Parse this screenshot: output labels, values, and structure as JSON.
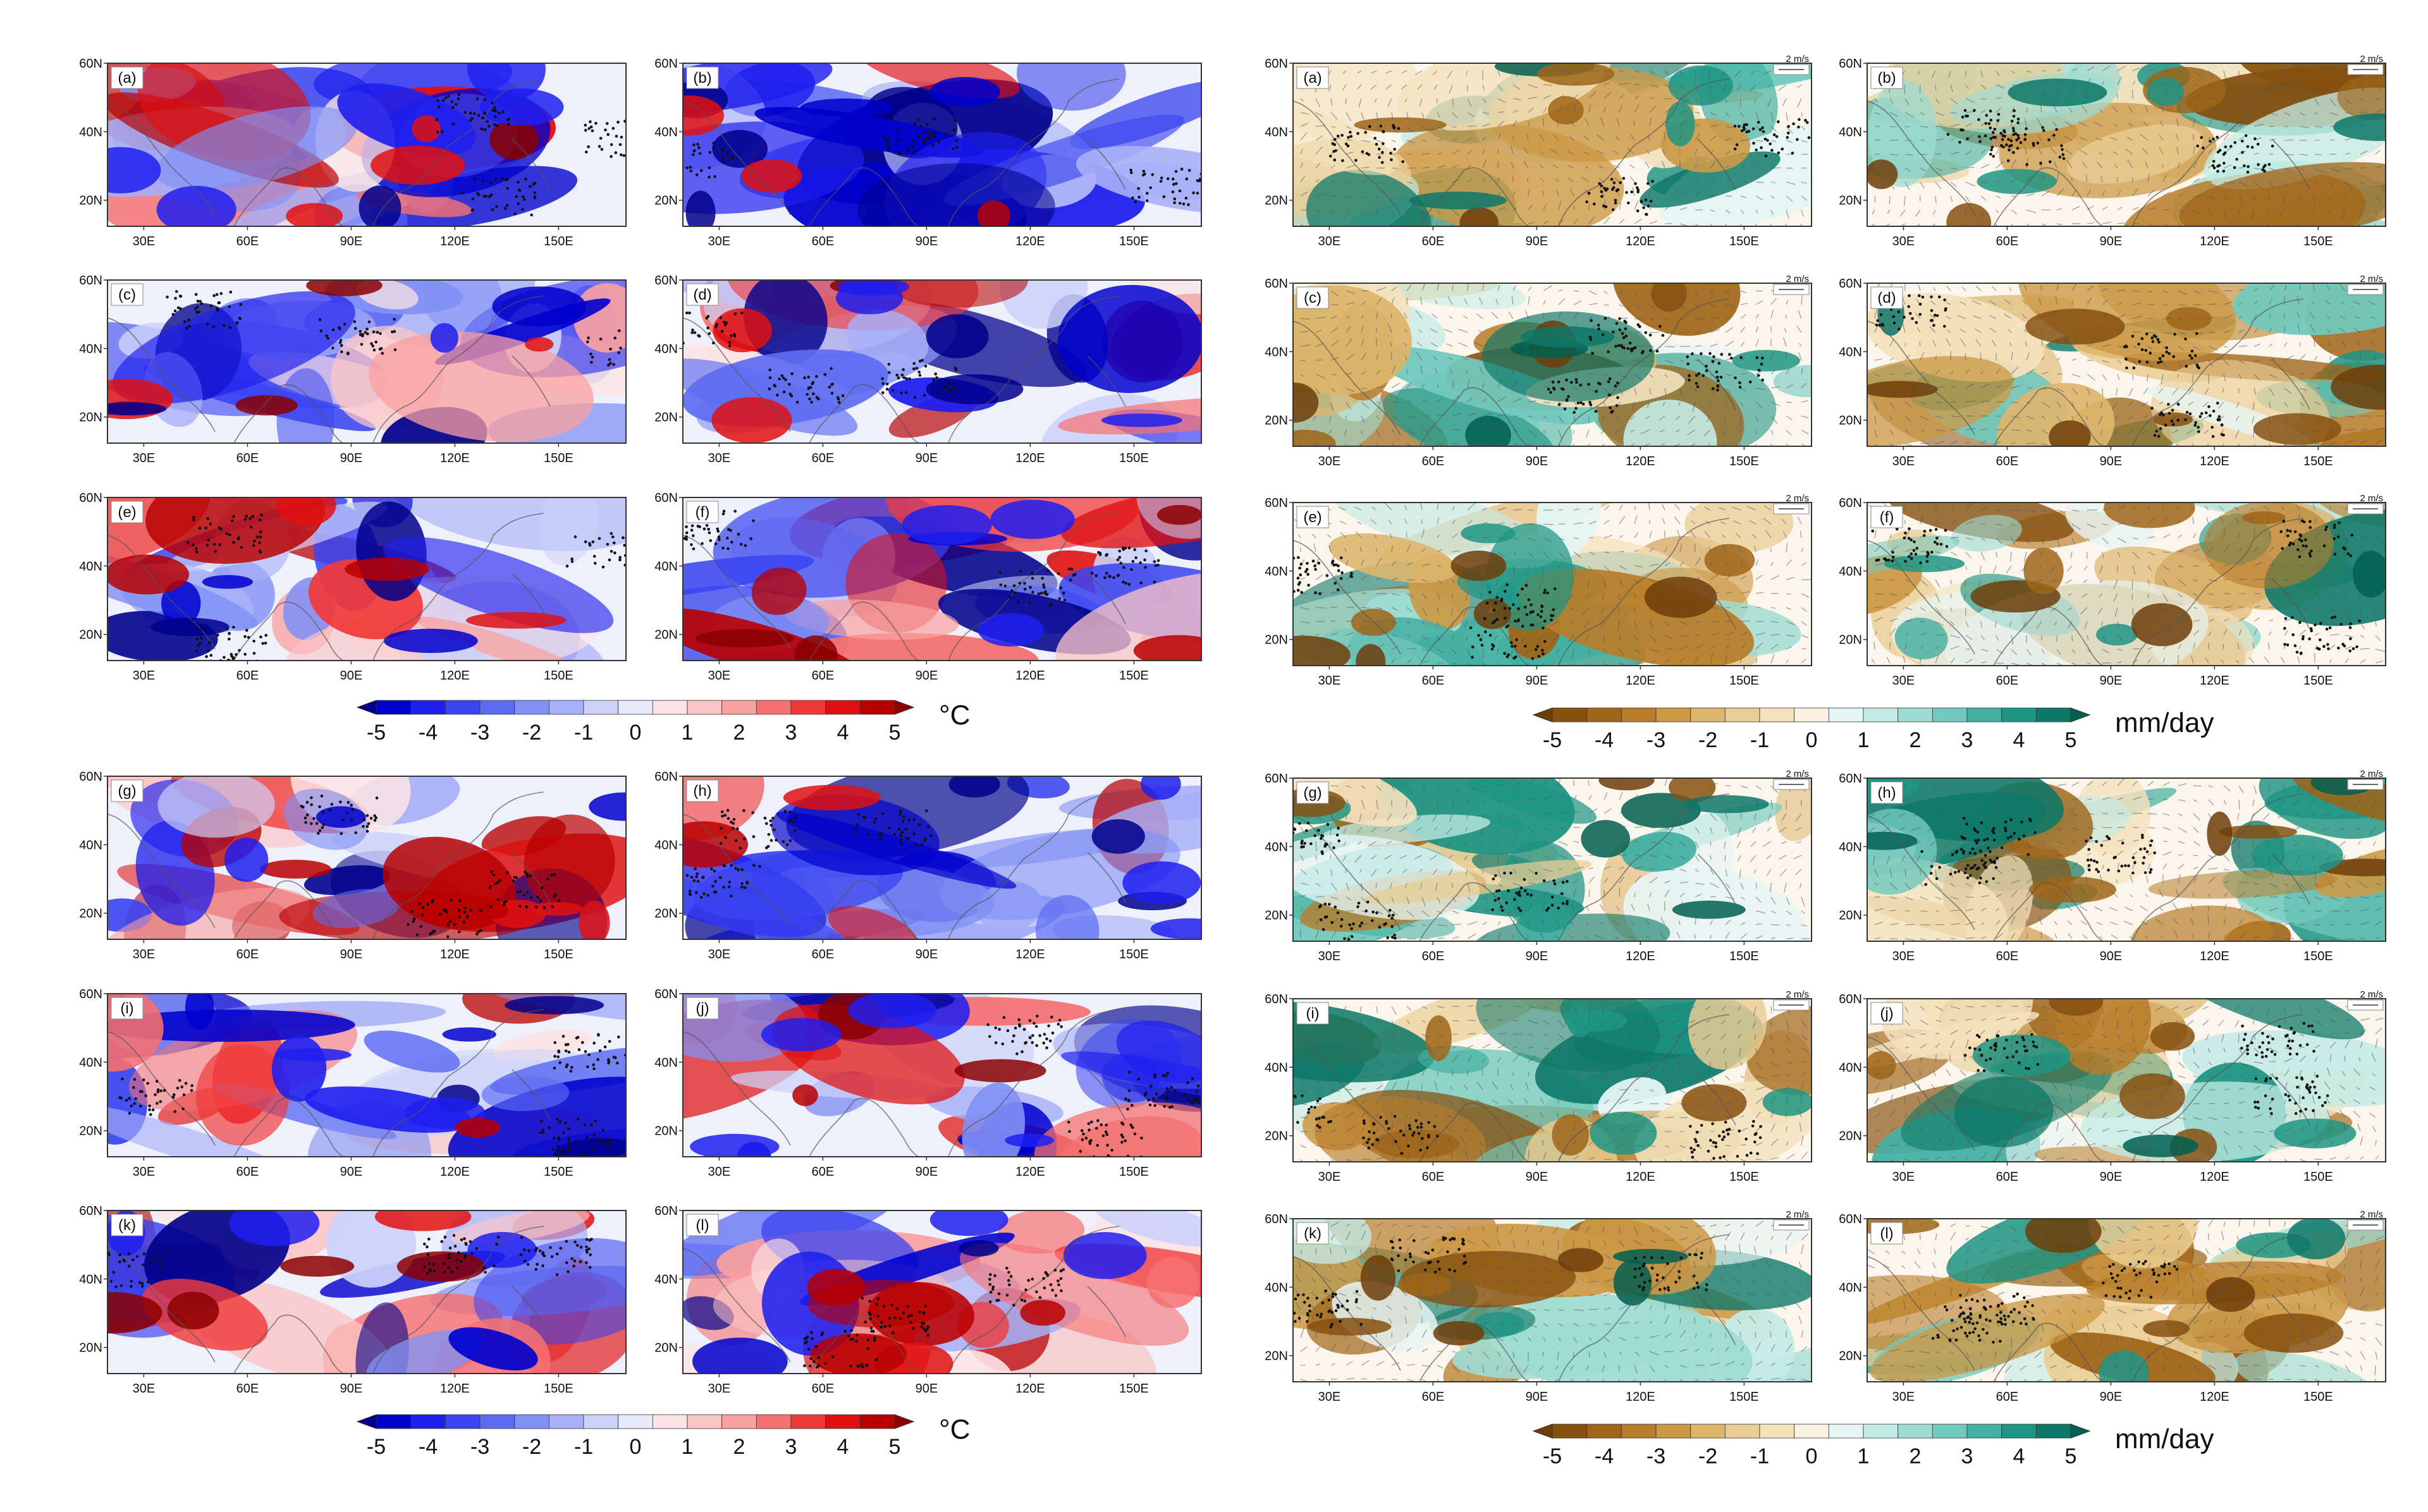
{
  "figure": {
    "lat_ticks": [
      "60N",
      "40N",
      "20N"
    ],
    "lon_ticks": [
      "30E",
      "60E",
      "90E",
      "120E",
      "150E"
    ],
    "vector_reference": "2 m/s",
    "temperature_panels": [
      "(a)",
      "(b)",
      "(c)",
      "(d)",
      "(e)",
      "(f)",
      "(g)",
      "(h)",
      "(i)",
      "(j)",
      "(k)",
      "(l)"
    ],
    "precipitation_panels": [
      "(a)",
      "(b)",
      "(c)",
      "(d)",
      "(e)",
      "(f)",
      "(g)",
      "(h)",
      "(i)",
      "(j)",
      "(k)",
      "(l)"
    ],
    "temperature_colorbar": {
      "ticks": [
        "-5",
        "-4",
        "-3",
        "-2",
        "-1",
        "0",
        "1",
        "2",
        "3",
        "4",
        "5"
      ],
      "unit": "°C",
      "colors": [
        "#00008b",
        "#0000cd",
        "#1f1fee",
        "#3a45f0",
        "#5d6cf2",
        "#8190f4",
        "#a7b0f7",
        "#ccd2fa",
        "#e8ebfc",
        "#fde4e4",
        "#fbc5c5",
        "#f9a0a0",
        "#f57070",
        "#f03a3a",
        "#e01010",
        "#b80000",
        "#8b0000"
      ]
    },
    "precipitation_colorbar": {
      "ticks": [
        "-5",
        "-4",
        "-3",
        "-2",
        "-1",
        "0",
        "1",
        "2",
        "3",
        "4",
        "5"
      ],
      "unit": "mm/day",
      "colors": [
        "#6e3d08",
        "#86500f",
        "#9f6519",
        "#b87d2a",
        "#cc9a47",
        "#ddb56c",
        "#eacd94",
        "#f4e2bd",
        "#faf1e0",
        "#e6f5f3",
        "#c4ebe5",
        "#9edcd3",
        "#72c9bd",
        "#45b0a2",
        "#1f9584",
        "#0c7868",
        "#005f50"
      ]
    },
    "colors": {
      "neg_strong": "#0000cd",
      "pos_strong": "#e01010",
      "dry_strong": "#86500f",
      "wet_strong": "#005f50"
    }
  }
}
